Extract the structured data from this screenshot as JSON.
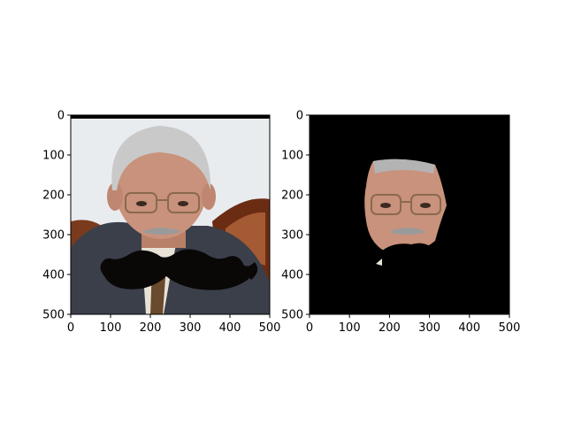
{
  "figure": {
    "panels": [
      {
        "id": "left",
        "content": "portrait photo with black mustache overlay",
        "x_ticks": [
          "0",
          "100",
          "200",
          "300",
          "400",
          "500"
        ],
        "y_ticks": [
          "0",
          "100",
          "200",
          "300",
          "400",
          "500"
        ]
      },
      {
        "id": "right",
        "content": "face-only cutout on black background with black mustache overlay",
        "x_ticks": [
          "0",
          "100",
          "200",
          "300",
          "400",
          "500"
        ],
        "y_ticks": [
          "0",
          "100",
          "200",
          "300",
          "400",
          "500"
        ]
      }
    ],
    "colors": {
      "background": "#ffffff",
      "axis": "#000000",
      "mask_black": "#000000",
      "skin": "#c9927c",
      "hair": "#c9c9c9",
      "suit": "#3b3f4a",
      "wall": "#e9ecef",
      "shirt": "#e8e2d6"
    }
  }
}
